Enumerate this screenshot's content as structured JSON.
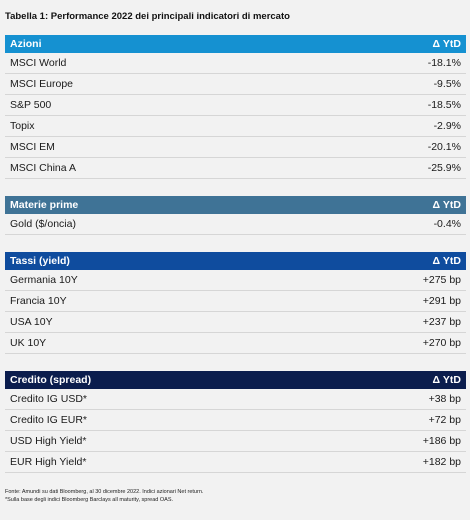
{
  "header": {
    "title": "Tabella 1: Performance 2022 dei principali indicatori di mercato"
  },
  "sections": [
    {
      "title": "Azioni",
      "column": "Δ YtD",
      "color": "#1591d1",
      "rows": [
        [
          "MSCI World",
          "-18.1%"
        ],
        [
          "MSCI Europe",
          "-9.5%"
        ],
        [
          "S&P 500",
          "-18.5%"
        ],
        [
          "Topix",
          "-2.9%"
        ],
        [
          "MSCI EM",
          "-20.1%"
        ],
        [
          "MSCI China A",
          "-25.9%"
        ]
      ]
    },
    {
      "title": "Materie prime",
      "column": "Δ YtD",
      "color": "#3f7396",
      "rows": [
        [
          "Gold ($/oncia)",
          "-0.4%"
        ]
      ]
    },
    {
      "title": "Tassi (yield)",
      "column": "Δ YtD",
      "color": "#0f4c9e",
      "rows": [
        [
          "Germania 10Y",
          "+275 bp"
        ],
        [
          "Francia 10Y",
          "+291 bp"
        ],
        [
          "USA 10Y",
          "+237 bp"
        ],
        [
          "UK 10Y",
          "+270 bp"
        ]
      ]
    },
    {
      "title": "Credito (spread)",
      "column": "Δ YtD",
      "color": "#0b1d4d",
      "rows": [
        [
          "Credito IG USD*",
          "+38 bp"
        ],
        [
          "Credito IG EUR*",
          "+72 bp"
        ],
        [
          "USD High Yield*",
          "+186 bp"
        ],
        [
          "EUR High Yield*",
          "+182 bp"
        ]
      ]
    }
  ],
  "footnotes": [
    "Fonte: Amundi su dati Bloomberg, al 30 dicembre 2022. Indici azionari Net return.",
    "*Sulla base degli indici Bloomberg Barclays all maturity, spread OAS."
  ]
}
